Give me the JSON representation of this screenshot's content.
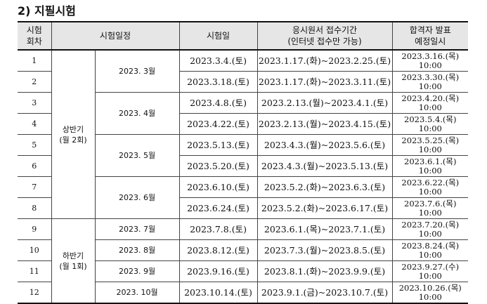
{
  "section_title": "2) 지필시험",
  "headers": {
    "round_line1": "시험",
    "round_line2": "회차",
    "schedule": "시험일정",
    "exam_date": "시험일",
    "application_line1": "응시원서 접수기간",
    "application_line2": "(인터넷 접수만 가능)",
    "announce_line1": "합격자 발표",
    "announce_line2": "예정일시"
  },
  "periods": [
    {
      "line1": "상반기",
      "line2": "(월 2회)"
    },
    {
      "line1": "하반기",
      "line2": "(월 1회)"
    }
  ],
  "months": [
    "2023. 3월",
    "2023. 4월",
    "2023. 5월",
    "2023. 6월",
    "2023. 7월",
    "2023. 8월",
    "2023. 9월",
    "2023. 10월"
  ],
  "rows": [
    {
      "no": "1",
      "exam_date": "2023.3.4.(토)",
      "application": "2023.1.17.(화)~2023.2.25.(토)",
      "announce_date": "2023.3.16.(목)",
      "announce_time": "10:00"
    },
    {
      "no": "2",
      "exam_date": "2023.3.18.(토)",
      "application": "2023.1.17.(화)~2023.3.11.(토)",
      "announce_date": "2023.3.30.(목)",
      "announce_time": "10:00"
    },
    {
      "no": "3",
      "exam_date": "2023.4.8.(토)",
      "application": "2023.2.13.(월)~2023.4.1.(토)",
      "announce_date": "2023.4.20.(목)",
      "announce_time": "10:00"
    },
    {
      "no": "4",
      "exam_date": "2023.4.22.(토)",
      "application": "2023.2.13.(월)~2023.4.15.(토)",
      "announce_date": "2023.5.4.(목)",
      "announce_time": "10:00"
    },
    {
      "no": "5",
      "exam_date": "2023.5.13.(토)",
      "application": "2023.4.3.(월)~2023.5.6.(토)",
      "announce_date": "2023.5.25.(목)",
      "announce_time": "10:00"
    },
    {
      "no": "6",
      "exam_date": "2023.5.20.(토)",
      "application": "2023.4.3.(월)~2023.5.13.(토)",
      "announce_date": "2023.6.1.(목)",
      "announce_time": "10:00"
    },
    {
      "no": "7",
      "exam_date": "2023.6.10.(토)",
      "application": "2023.5.2.(화)~2023.6.3.(토)",
      "announce_date": "2023.6.22.(목)",
      "announce_time": "10:00"
    },
    {
      "no": "8",
      "exam_date": "2023.6.24.(토)",
      "application": "2023.5.2.(화)~2023.6.17.(토)",
      "announce_date": "2023.7.6.(목)",
      "announce_time": "10:00"
    },
    {
      "no": "9",
      "exam_date": "2023.7.8.(토)",
      "application": "2023.6.1.(목)~2023.7.1.(토)",
      "announce_date": "2023.7.20.(목)",
      "announce_time": "10:00"
    },
    {
      "no": "10",
      "exam_date": "2023.8.12.(토)",
      "application": "2023.7.3.(월)~2023.8.5.(토)",
      "announce_date": "2023.8.24.(목)",
      "announce_time": "10:00"
    },
    {
      "no": "11",
      "exam_date": "2023.9.16.(토)",
      "application": "2023.8.1.(화)~2023.9.9.(토)",
      "announce_date": "2023.9.27.(수)",
      "announce_time": "10:00"
    },
    {
      "no": "12",
      "exam_date": "2023.10.14.(토)",
      "application": "2023.9.1.(금)~2023.10.7.(토)",
      "announce_date": "2023.10.26.(목)",
      "announce_time": "10:00"
    }
  ]
}
